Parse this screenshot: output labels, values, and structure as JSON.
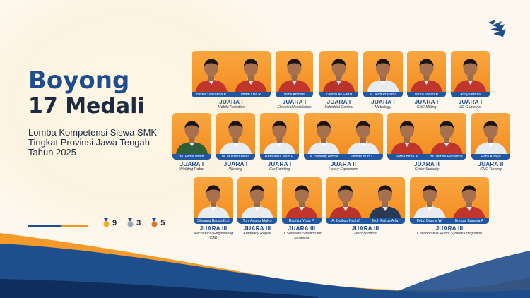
{
  "headline": {
    "line1": "Boyong",
    "line2": "17 Medali"
  },
  "subtitle": [
    "Lomba Kompetensi Siswa SMK",
    "Tingkat Provinsi Jawa Tengah",
    "Tahun 2025"
  ],
  "tally": [
    {
      "medal": "gold",
      "count": "9",
      "color": "#e8b21e"
    },
    {
      "medal": "silver",
      "count": "3",
      "color": "#9aa7b4"
    },
    {
      "medal": "bronze",
      "count": "5",
      "color": "#d27a3a"
    }
  ],
  "colors": {
    "primary": "#1f4e8c",
    "accent": "#f7941d",
    "card": "#f28b1e"
  },
  "groups": [
    {
      "rank": "JUARA I",
      "category": "Mobile Robotics",
      "students": [
        "Yuska Yuskanda P.",
        "Ilham Dwi R"
      ]
    },
    {
      "rank": "JUARA I",
      "category": "Electrical Installation",
      "students": [
        "Tomii Adinata"
      ]
    },
    {
      "rank": "JUARA I",
      "category": "Industrial Control",
      "students": [
        "Zaenal Ali Fauzi"
      ]
    },
    {
      "rank": "JUARA I",
      "category": "Metrology",
      "students": [
        "M. Andi Pratama"
      ]
    },
    {
      "rank": "JUARA I",
      "category": "CNC Milling",
      "students": [
        "Nicko Johan R"
      ]
    },
    {
      "rank": "JUARA I",
      "category": "3D Game Art",
      "students": [
        "Aditya Afriza"
      ]
    },
    {
      "rank": "JUARA I",
      "category": "Welding Robot",
      "students": [
        "M. Fazril Ilham"
      ]
    },
    {
      "rank": "JUARA I",
      "category": "Welding",
      "students": [
        "M. Mustain Billah"
      ]
    },
    {
      "rank": "JUARA I",
      "category": "Car Painting",
      "students": [
        "Refandika Julio F."
      ]
    },
    {
      "rank": "JUARA II",
      "category": "Heavy Equipment",
      "students": [
        "M. Shandy Afrizal",
        "Dimas Budi C."
      ]
    },
    {
      "rank": "JUARA II",
      "category": "Cyber Security",
      "students": [
        "Satria Bima A.",
        "M. Dimas Fahrezha"
      ]
    },
    {
      "rank": "JUARA II",
      "category": "CNC Turning",
      "students": [
        "Hafis Arraya"
      ]
    },
    {
      "rank": "JUARA III",
      "category": "Mechanical Engineering CAD",
      "students": [
        "Silvanus Bagas D.J."
      ]
    },
    {
      "rank": "JUARA III",
      "category": "Autobody Repair",
      "students": [
        "Toni Agung Mulyo"
      ]
    },
    {
      "rank": "JUARA III",
      "category": "IT Software Solution for business",
      "students": [
        "Raditya Yuga P."
      ]
    },
    {
      "rank": "JUARA III",
      "category": "Mechatronics",
      "students": [
        "A. Qolbun Nadhif",
        "Moh Fairus Arfa"
      ]
    },
    {
      "rank": "JUARA III",
      "category": "Collaborative Robot System Integration",
      "students": [
        "Febri Darma W.",
        "Enggal Karunia A"
      ]
    }
  ]
}
